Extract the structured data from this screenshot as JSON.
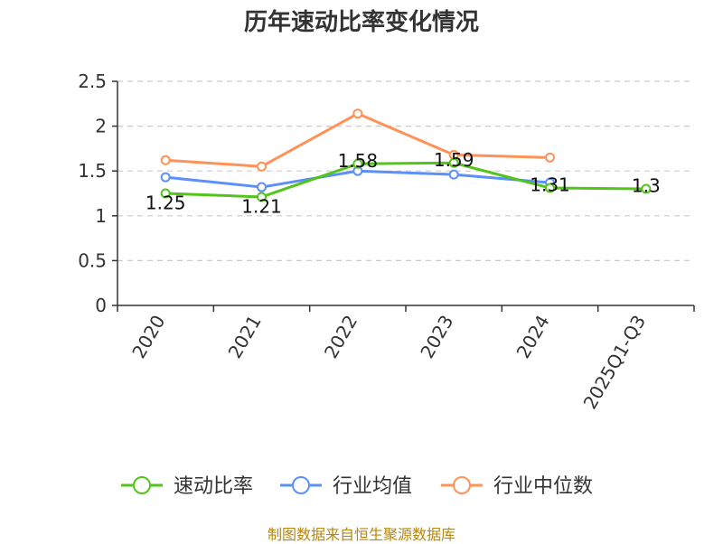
{
  "chart_data": {
    "type": "line",
    "title": "历年速动比率变化情况",
    "categories": [
      "2020",
      "2021",
      "2022",
      "2023",
      "2024",
      "2025Q1-Q3"
    ],
    "ylim": [
      0,
      2.5
    ],
    "yticks": [
      "0",
      "0.5",
      "1",
      "1.5",
      "2",
      "2.5"
    ],
    "grid": true,
    "legend_position": "bottom",
    "series": [
      {
        "name": "速动比率",
        "color": "#52c41a",
        "values": [
          1.25,
          1.21,
          1.58,
          1.59,
          1.31,
          1.3
        ],
        "labels": [
          "1.25",
          "1.21",
          "1.58",
          "1.59",
          "1.31",
          "1.3"
        ]
      },
      {
        "name": "行业均值",
        "color": "#5b8ff9",
        "values": [
          1.43,
          1.32,
          1.5,
          1.46,
          1.37,
          null
        ]
      },
      {
        "name": "行业中位数",
        "color": "#ff9257",
        "values": [
          1.62,
          1.55,
          2.14,
          1.68,
          1.65,
          null
        ]
      }
    ]
  },
  "source": "制图数据来自恒生聚源数据库"
}
